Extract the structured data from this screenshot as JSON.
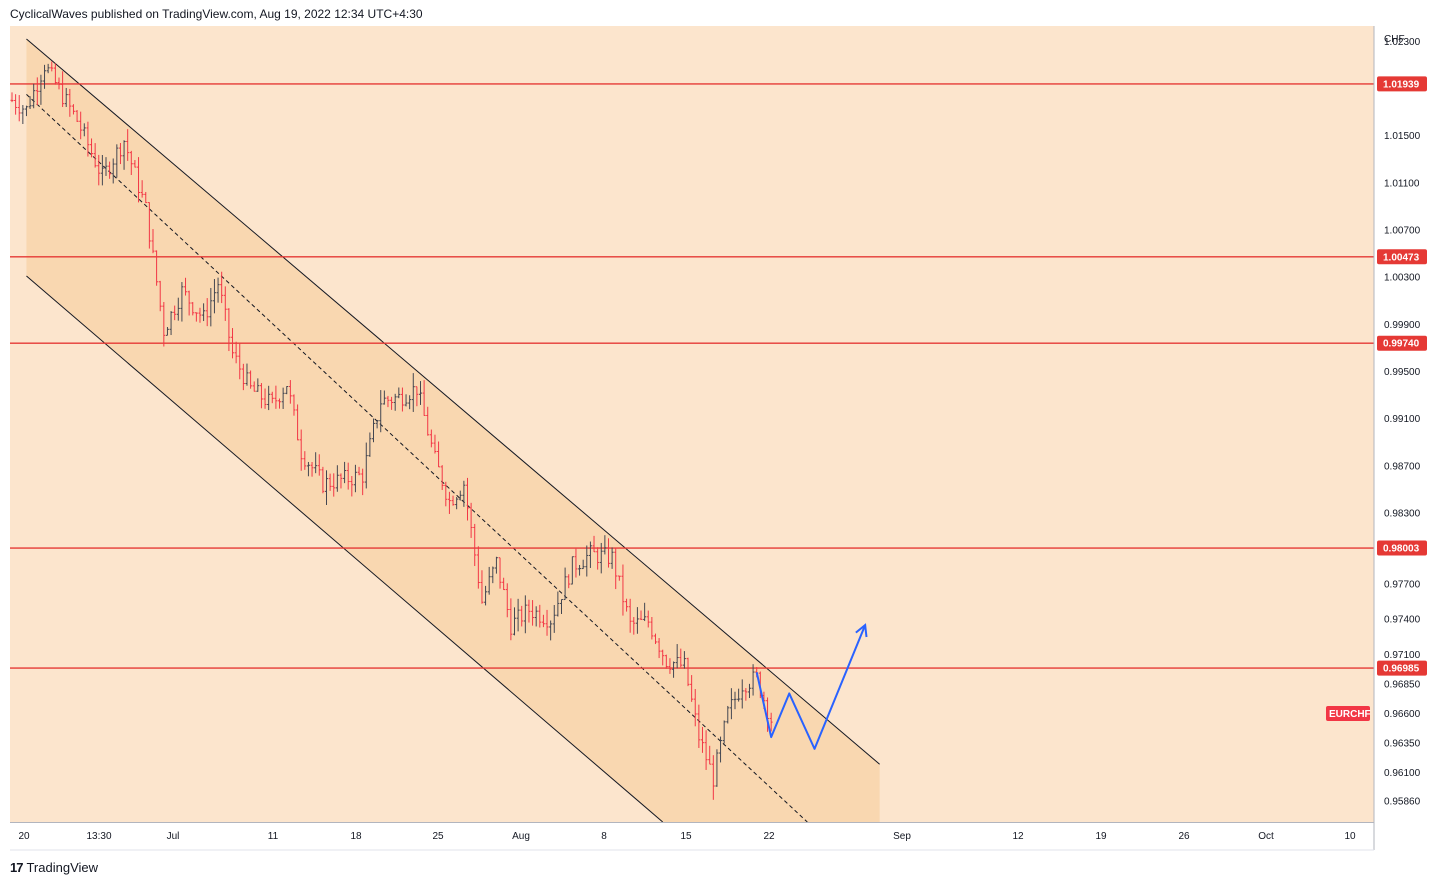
{
  "header": {
    "text": "CyclicalWaves published on TradingView.com, Aug 19, 2022 12:34 UTC+4:30"
  },
  "footer": {
    "logo": "17",
    "brand": "TradingView"
  },
  "colors": {
    "background": "#fce5cd",
    "channel_fill": "#f8d5aa",
    "level_line": "#e53935",
    "candle_up": "#434651",
    "candle_down": "#f23645",
    "projection": "#2962ff",
    "symbol_tag": "#f23645"
  },
  "chart_data": {
    "type": "candlestick",
    "symbol": "EURCHF",
    "currency": "CHF",
    "ylim": [
      0.9568,
      1.0243
    ],
    "x_ticks": [
      "20",
      "13:30",
      "Jul",
      "11",
      "18",
      "25",
      "Aug",
      "8",
      "15",
      "22",
      "Sep",
      "12",
      "19",
      "26",
      "Oct",
      "10"
    ],
    "y_ticks": [
      "1.02300",
      "1.01500",
      "1.01100",
      "1.00700",
      "1.00300",
      "0.99900",
      "0.99500",
      "0.99100",
      "0.98700",
      "0.98300",
      "0.97700",
      "0.97400",
      "0.97100",
      "0.96850",
      "0.96600",
      "0.96350",
      "0.96100",
      "0.95860"
    ],
    "levels": [
      1.01939,
      1.00473,
      0.9974,
      0.98003,
      0.96985
    ],
    "level_labels": [
      "1.01939",
      "1.00473",
      "0.99740",
      "0.98003",
      "0.96985"
    ],
    "last_price_tag": "EURCHF",
    "last_price": 0.966,
    "candle_count": 240,
    "channel": {
      "upper": [
        [
          4,
          1.0232
        ],
        [
          240,
          0.9617
        ]
      ],
      "middle": [
        [
          4,
          1.0185
        ],
        [
          220,
          0.9568
        ]
      ],
      "lower": [
        [
          4,
          1.0031
        ],
        [
          180,
          0.9568
        ]
      ],
      "fill_end_index": 240
    },
    "projection": [
      [
        206,
        0.9695
      ],
      [
        210,
        0.964
      ],
      [
        215,
        0.9677
      ],
      [
        222,
        0.963
      ],
      [
        236,
        0.9735
      ]
    ],
    "series": [
      {
        "i": 0,
        "price": 1.018
      },
      {
        "i": 4,
        "price": 1.0172
      },
      {
        "i": 9,
        "price": 1.021
      },
      {
        "i": 18,
        "price": 1.0163
      },
      {
        "i": 25,
        "price": 1.0115
      },
      {
        "i": 31,
        "price": 1.0146
      },
      {
        "i": 37,
        "price": 1.0088
      },
      {
        "i": 42,
        "price": 0.9985
      },
      {
        "i": 47,
        "price": 1.0018
      },
      {
        "i": 53,
        "price": 0.9995
      },
      {
        "i": 57,
        "price": 1.0025
      },
      {
        "i": 61,
        "price": 0.9965
      },
      {
        "i": 66,
        "price": 0.9935
      },
      {
        "i": 72,
        "price": 0.9922
      },
      {
        "i": 76,
        "price": 0.994
      },
      {
        "i": 80,
        "price": 0.9882
      },
      {
        "i": 86,
        "price": 0.9855
      },
      {
        "i": 91,
        "price": 0.9858
      },
      {
        "i": 97,
        "price": 0.9862
      },
      {
        "i": 102,
        "price": 0.9925
      },
      {
        "i": 107,
        "price": 0.9928
      },
      {
        "i": 112,
        "price": 0.9936
      },
      {
        "i": 117,
        "price": 0.9875
      },
      {
        "i": 121,
        "price": 0.984
      },
      {
        "i": 125,
        "price": 0.9855
      },
      {
        "i": 130,
        "price": 0.9755
      },
      {
        "i": 134,
        "price": 0.9788
      },
      {
        "i": 138,
        "price": 0.9735
      },
      {
        "i": 143,
        "price": 0.9748
      },
      {
        "i": 149,
        "price": 0.974
      },
      {
        "i": 155,
        "price": 0.9785
      },
      {
        "i": 160,
        "price": 0.9795
      },
      {
        "i": 166,
        "price": 0.9792
      },
      {
        "i": 171,
        "price": 0.9735
      },
      {
        "i": 176,
        "price": 0.9738
      },
      {
        "i": 181,
        "price": 0.9705
      },
      {
        "i": 186,
        "price": 0.97
      },
      {
        "i": 190,
        "price": 0.964
      },
      {
        "i": 194,
        "price": 0.9605
      },
      {
        "i": 198,
        "price": 0.966
      },
      {
        "i": 202,
        "price": 0.9685
      },
      {
        "i": 206,
        "price": 0.969
      },
      {
        "i": 210,
        "price": 0.9655
      }
    ]
  }
}
